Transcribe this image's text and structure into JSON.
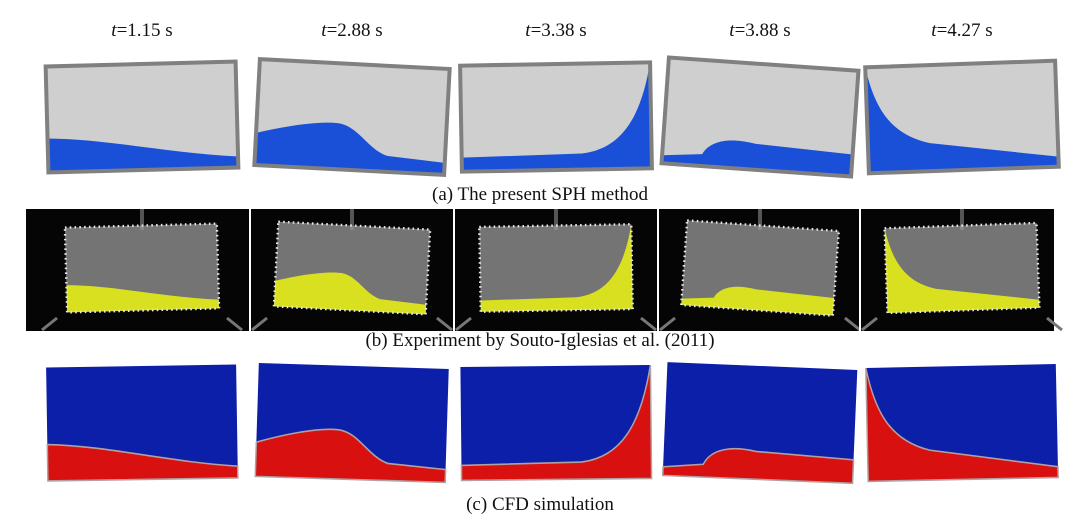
{
  "time_labels": [
    {
      "variable": "t",
      "rest": "=1.15 s"
    },
    {
      "variable": "t",
      "rest": "=2.88 s"
    },
    {
      "variable": "t",
      "rest": "=3.38 s"
    },
    {
      "variable": "t",
      "rest": "=3.88 s"
    },
    {
      "variable": "t",
      "rest": "=4.27 s"
    }
  ],
  "captions": [
    "(a) The present SPH method",
    "(b) Experiment by Souto-Iglesias et al. (2011)",
    "(c) CFD simulation"
  ]
}
